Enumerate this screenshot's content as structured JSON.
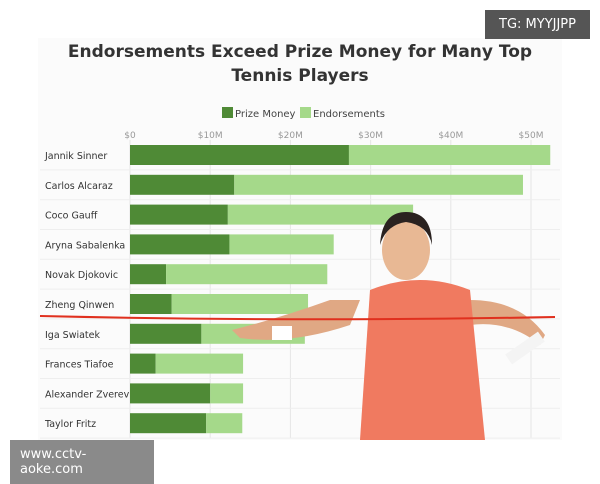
{
  "watermarks": {
    "top": "TG: MYYJJPP",
    "bottom": "www.cctv-aoke.com"
  },
  "chart_data": {
    "type": "bar",
    "orientation": "horizontal",
    "stacked": true,
    "title": "Endorsements Exceed Prize Money for Many Top Tennis Players",
    "categories": [
      "Jannik Sinner",
      "Carlos Alcaraz",
      "Coco Gauff",
      "Aryna Sabalenka",
      "Novak Djokovic",
      "Zheng Qinwen",
      "Iga Swiatek",
      "Frances Tiafoe",
      "Alexander Zverev",
      "Taylor Fritz"
    ],
    "series": [
      {
        "name": "Prize Money",
        "color": "#4f8a36",
        "values": [
          27.3,
          13,
          12.2,
          12.4,
          4.5,
          5.2,
          8.9,
          3.2,
          10,
          9.5
        ]
      },
      {
        "name": "Endorsements",
        "color": "#a5d98a",
        "values": [
          25.1,
          36,
          23.1,
          13,
          20.1,
          17,
          12.9,
          10.9,
          4.1,
          4.5
        ]
      }
    ],
    "xlim": [
      0,
      50
    ],
    "xticks": [
      0,
      10,
      20,
      30,
      40,
      50
    ],
    "xtick_labels": [
      "$0",
      "$10M",
      "$20M",
      "$30M",
      "$40M",
      "$50M"
    ],
    "legend": "top",
    "grid": true,
    "annotation": {
      "type": "red underline",
      "target": "Zheng Qinwen",
      "color": "#e0301e"
    }
  }
}
